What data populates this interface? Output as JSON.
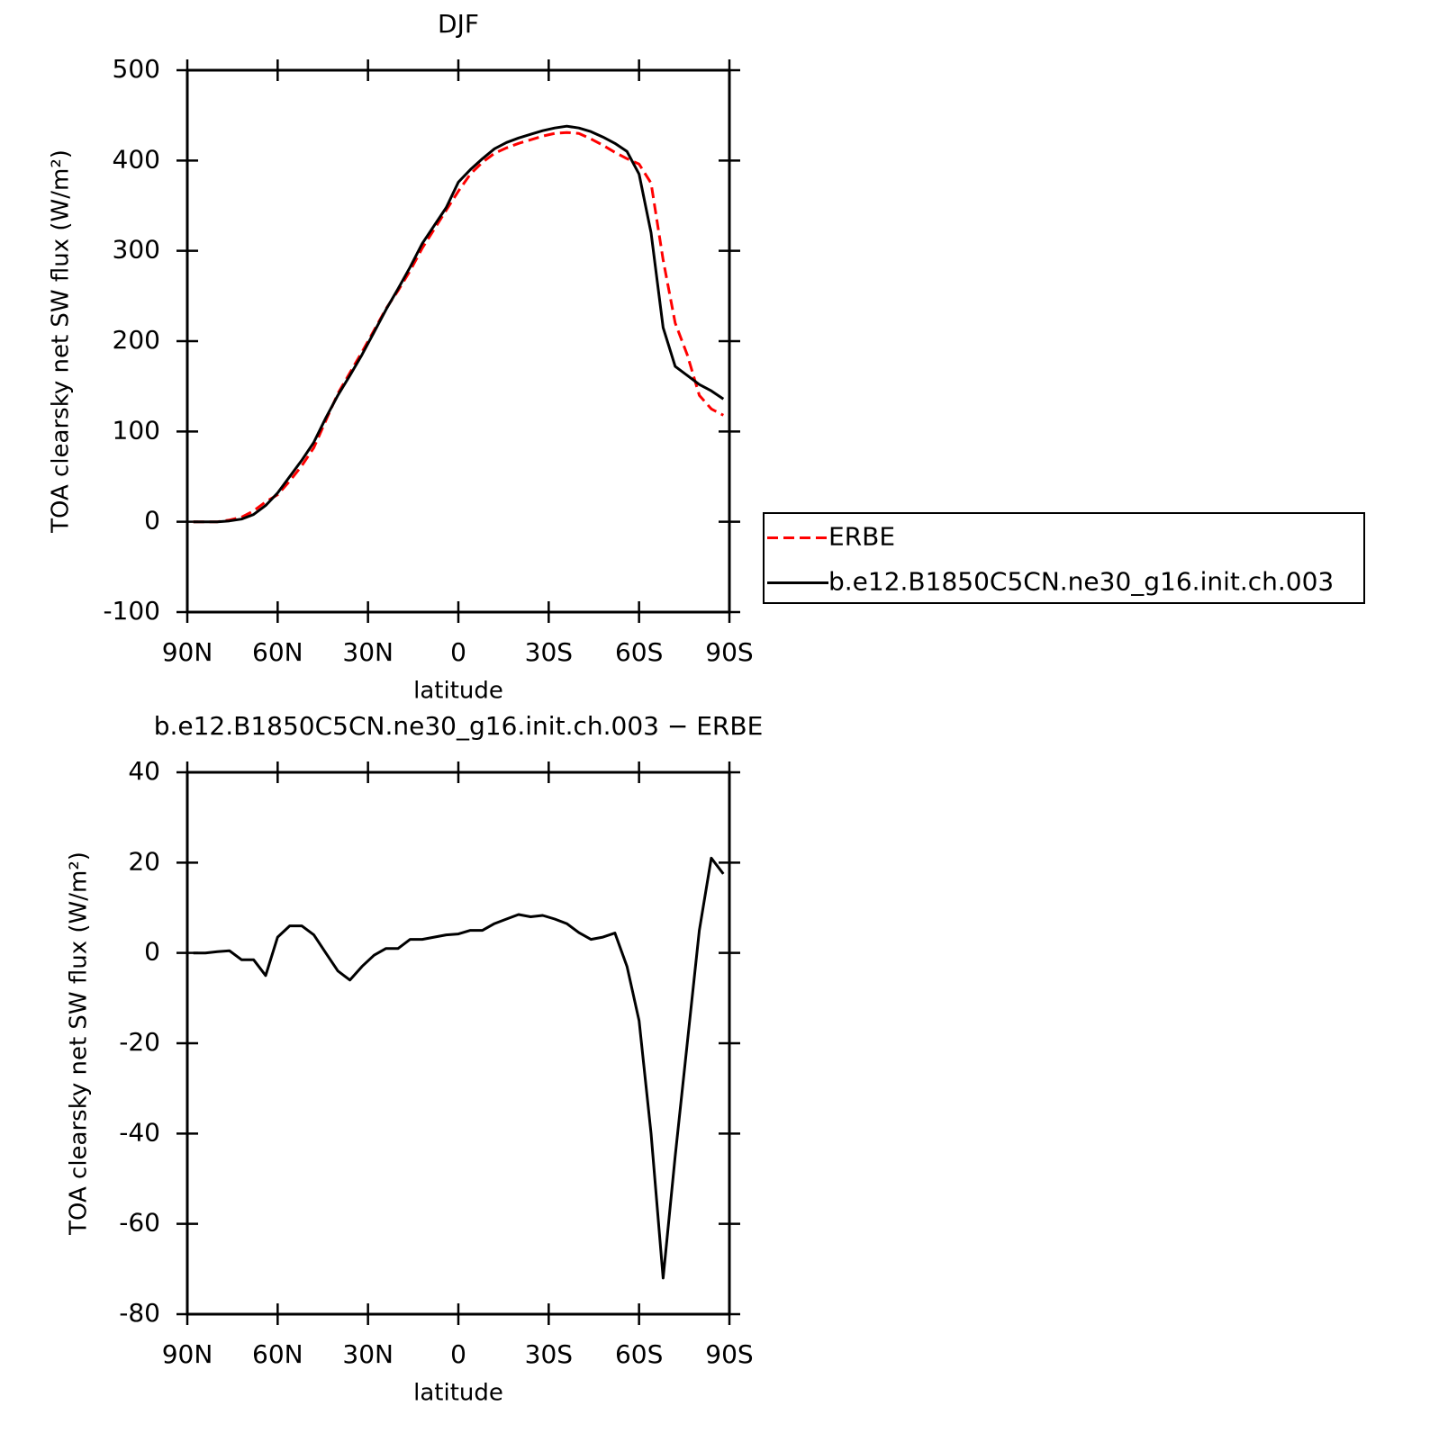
{
  "chart_data": [
    {
      "type": "line",
      "title": "DJF",
      "xlabel": "latitude",
      "ylabel": "TOA clearsky net SW flux (W/m²)",
      "xlim": [
        90,
        -90
      ],
      "xticks": [
        {
          "value": 90,
          "label": "90N"
        },
        {
          "value": 60,
          "label": "60N"
        },
        {
          "value": 30,
          "label": "30N"
        },
        0,
        {
          "value": -30,
          "label": "30S"
        },
        {
          "value": -60,
          "label": "60S"
        },
        {
          "value": -90,
          "label": "90S"
        }
      ],
      "ylim": [
        -100,
        500
      ],
      "yticks": [
        -100,
        0,
        100,
        200,
        300,
        400,
        500
      ],
      "legend": "right",
      "x": [
        88,
        84,
        80,
        76,
        72,
        68,
        64,
        60,
        56,
        52,
        48,
        44,
        40,
        36,
        32,
        28,
        24,
        20,
        16,
        12,
        8,
        4,
        0,
        -4,
        -8,
        -12,
        -16,
        -20,
        -24,
        -28,
        -32,
        -36,
        -40,
        -44,
        -48,
        -52,
        -56,
        -60,
        -64,
        -68,
        -72,
        -76,
        -80,
        -84,
        -88
      ],
      "series": [
        {
          "name": "ERBE",
          "color": "#ff0000",
          "dash": true,
          "values": [
            0,
            0,
            0,
            2,
            5,
            12,
            22,
            30,
            45,
            62,
            82,
            112,
            142,
            165,
            188,
            212,
            236,
            256,
            278,
            303,
            324,
            345,
            366,
            385,
            398,
            408,
            414,
            419,
            423,
            427,
            430,
            431,
            430,
            424,
            417,
            409,
            402,
            396,
            375,
            290,
            220,
            185,
            140,
            125,
            118
          ]
        },
        {
          "name": "b.e12.B1850C5CN.ne30_g16.init.ch.003",
          "color": "#000000",
          "dash": false,
          "values": [
            0,
            0,
            0,
            1,
            3,
            8,
            18,
            32,
            50,
            68,
            88,
            115,
            140,
            162,
            185,
            210,
            235,
            258,
            282,
            308,
            328,
            348,
            376,
            390,
            402,
            413,
            420,
            425,
            429,
            433,
            436,
            438,
            436,
            432,
            426,
            419,
            410,
            385,
            320,
            215,
            172,
            162,
            152,
            145,
            136
          ]
        }
      ]
    },
    {
      "type": "line",
      "title": "b.e12.B1850C5CN.ne30_g16.init.ch.003 − ERBE",
      "xlabel": "latitude",
      "ylabel": "TOA clearsky net SW flux (W/m²)",
      "xlim": [
        90,
        -90
      ],
      "xticks": [
        {
          "value": 90,
          "label": "90N"
        },
        {
          "value": 60,
          "label": "60N"
        },
        {
          "value": 30,
          "label": "30N"
        },
        0,
        {
          "value": -30,
          "label": "30S"
        },
        {
          "value": -60,
          "label": "60S"
        },
        {
          "value": -90,
          "label": "90S"
        }
      ],
      "ylim": [
        -80,
        40
      ],
      "yticks": [
        -80,
        -60,
        -40,
        -20,
        0,
        20,
        40
      ],
      "x": [
        88,
        84,
        80,
        76,
        72,
        68,
        64,
        60,
        56,
        52,
        48,
        44,
        40,
        36,
        32,
        28,
        24,
        20,
        16,
        12,
        8,
        4,
        0,
        -4,
        -8,
        -12,
        -16,
        -20,
        -24,
        -28,
        -32,
        -36,
        -40,
        -44,
        -48,
        -52,
        -56,
        -60,
        -64,
        -68,
        -72,
        -76,
        -80,
        -84,
        -88
      ],
      "color": "#000000",
      "values": [
        0,
        0,
        0.3,
        0.5,
        -1.5,
        -1.5,
        -5,
        3.5,
        6,
        6,
        4,
        0,
        -4,
        -6,
        -3,
        -0.5,
        1,
        1,
        3,
        3,
        3.5,
        4,
        4.2,
        5,
        5,
        6.5,
        7.5,
        8.5,
        8,
        8.3,
        7.5,
        6.5,
        4.5,
        3,
        3.5,
        4.4,
        -3,
        -15,
        -40,
        -72,
        -45,
        -20,
        5,
        21,
        17.5
      ]
    }
  ]
}
